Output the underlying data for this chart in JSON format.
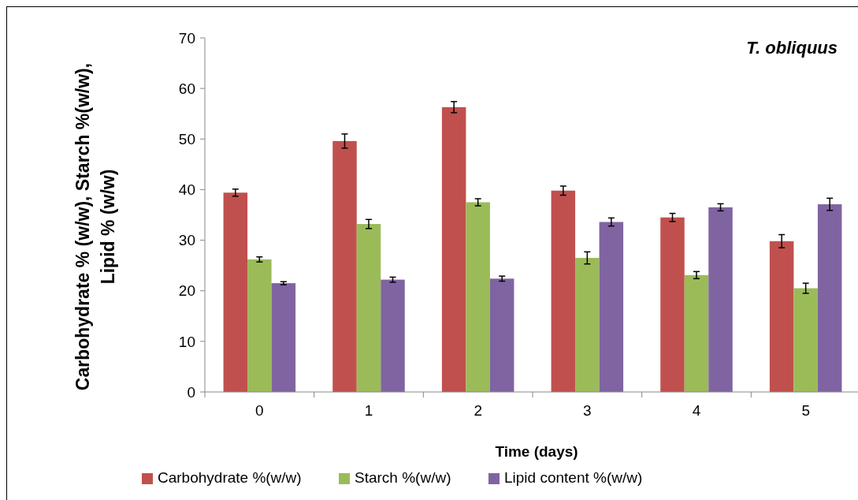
{
  "chart_data": {
    "type": "bar",
    "title": "T. obliquus",
    "xlabel": "Time (days)",
    "ylabel": "Carbohydrate % (w/w), Starch %(w/w), Lipid % (w/w)",
    "categories": [
      "0",
      "1",
      "2",
      "3",
      "4",
      "5"
    ],
    "series": [
      {
        "name": "Carbohydrate %(w/w)",
        "color": "#c0504d",
        "values": [
          39.4,
          49.6,
          56.3,
          39.8,
          34.5,
          29.8
        ],
        "errors": [
          0.7,
          1.4,
          1.1,
          0.9,
          0.8,
          1.3
        ]
      },
      {
        "name": "Starch %(w/w)",
        "color": "#9bbb59",
        "values": [
          26.2,
          33.2,
          37.5,
          26.5,
          23.1,
          20.5
        ],
        "errors": [
          0.5,
          0.9,
          0.7,
          1.2,
          0.7,
          1.0
        ]
      },
      {
        "name": "Lipid content %(w/w)",
        "color": "#8064a2",
        "values": [
          21.5,
          22.2,
          22.4,
          33.6,
          36.5,
          37.1
        ],
        "errors": [
          0.3,
          0.5,
          0.5,
          0.8,
          0.7,
          1.2
        ]
      }
    ],
    "ylim": [
      0,
      70
    ],
    "yticks": [
      0,
      10,
      20,
      30,
      40,
      50,
      60,
      70
    ],
    "grid": false,
    "legend": "bottom"
  }
}
